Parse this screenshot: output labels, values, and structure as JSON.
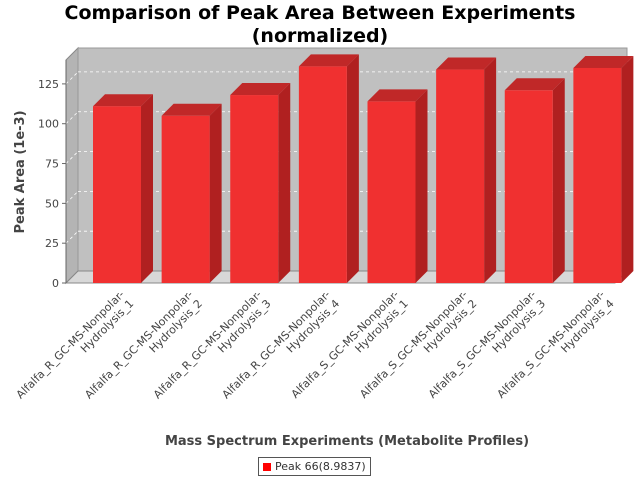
{
  "chart_data": {
    "type": "bar",
    "title": "Comparison of Peak Area Between Experiments (normalized)",
    "title_lines": [
      "Comparison of Peak Area Between Experiments",
      "(normalized)"
    ],
    "xlabel": "Mass Spectrum Experiments (Metabolite Profiles)",
    "ylabel": "Peak Area (1e-3)",
    "ylim": [
      0,
      140
    ],
    "yticks": [
      0,
      25,
      50,
      75,
      100,
      125
    ],
    "grid": true,
    "legend_placement": "bottom-center",
    "bar_color": "#f03030",
    "categories": [
      "Alfalfa_R_GC-MS-Nonpolar-Hydrolysis_1",
      "Alfalfa_R_GC-MS-Nonpolar-Hydrolysis_2",
      "Alfalfa_R_GC-MS-Nonpolar-Hydrolysis_3",
      "Alfalfa_R_GC-MS-Nonpolar-Hydrolysis_4",
      "Alfalfa_S_GC-MS-Nonpolar-Hydrolysis_1",
      "Alfalfa_S_GC-MS-Nonpolar-Hydrolysis_2",
      "Alfalfa_S_GC-MS-Nonpolar-Hydrolysis_3",
      "Alfalfa_S_GC-MS-Nonpolar-Hydrolysis_4"
    ],
    "category_lines": [
      [
        "Alfalfa_R_GC-MS-Nonpolar-",
        "Hydrolysis_1"
      ],
      [
        "Alfalfa_R_GC-MS-Nonpolar-",
        "Hydrolysis_2"
      ],
      [
        "Alfalfa_R_GC-MS-Nonpolar-",
        "Hydrolysis_3"
      ],
      [
        "Alfalfa_R_GC-MS-Nonpolar-",
        "Hydrolysis_4"
      ],
      [
        "Alfalfa_S_GC-MS-Nonpolar-",
        "Hydrolysis_1"
      ],
      [
        "Alfalfa_S_GC-MS-Nonpolar-",
        "Hydrolysis_2"
      ],
      [
        "Alfalfa_S_GC-MS-Nonpolar-",
        "Hydrolysis_3"
      ],
      [
        "Alfalfa_S_GC-MS-Nonpolar-",
        "Hydrolysis_4"
      ]
    ],
    "series": [
      {
        "name": "Peak 66(8.9837)",
        "values": [
          111,
          105,
          118,
          136,
          114,
          134,
          121,
          135
        ]
      }
    ]
  }
}
